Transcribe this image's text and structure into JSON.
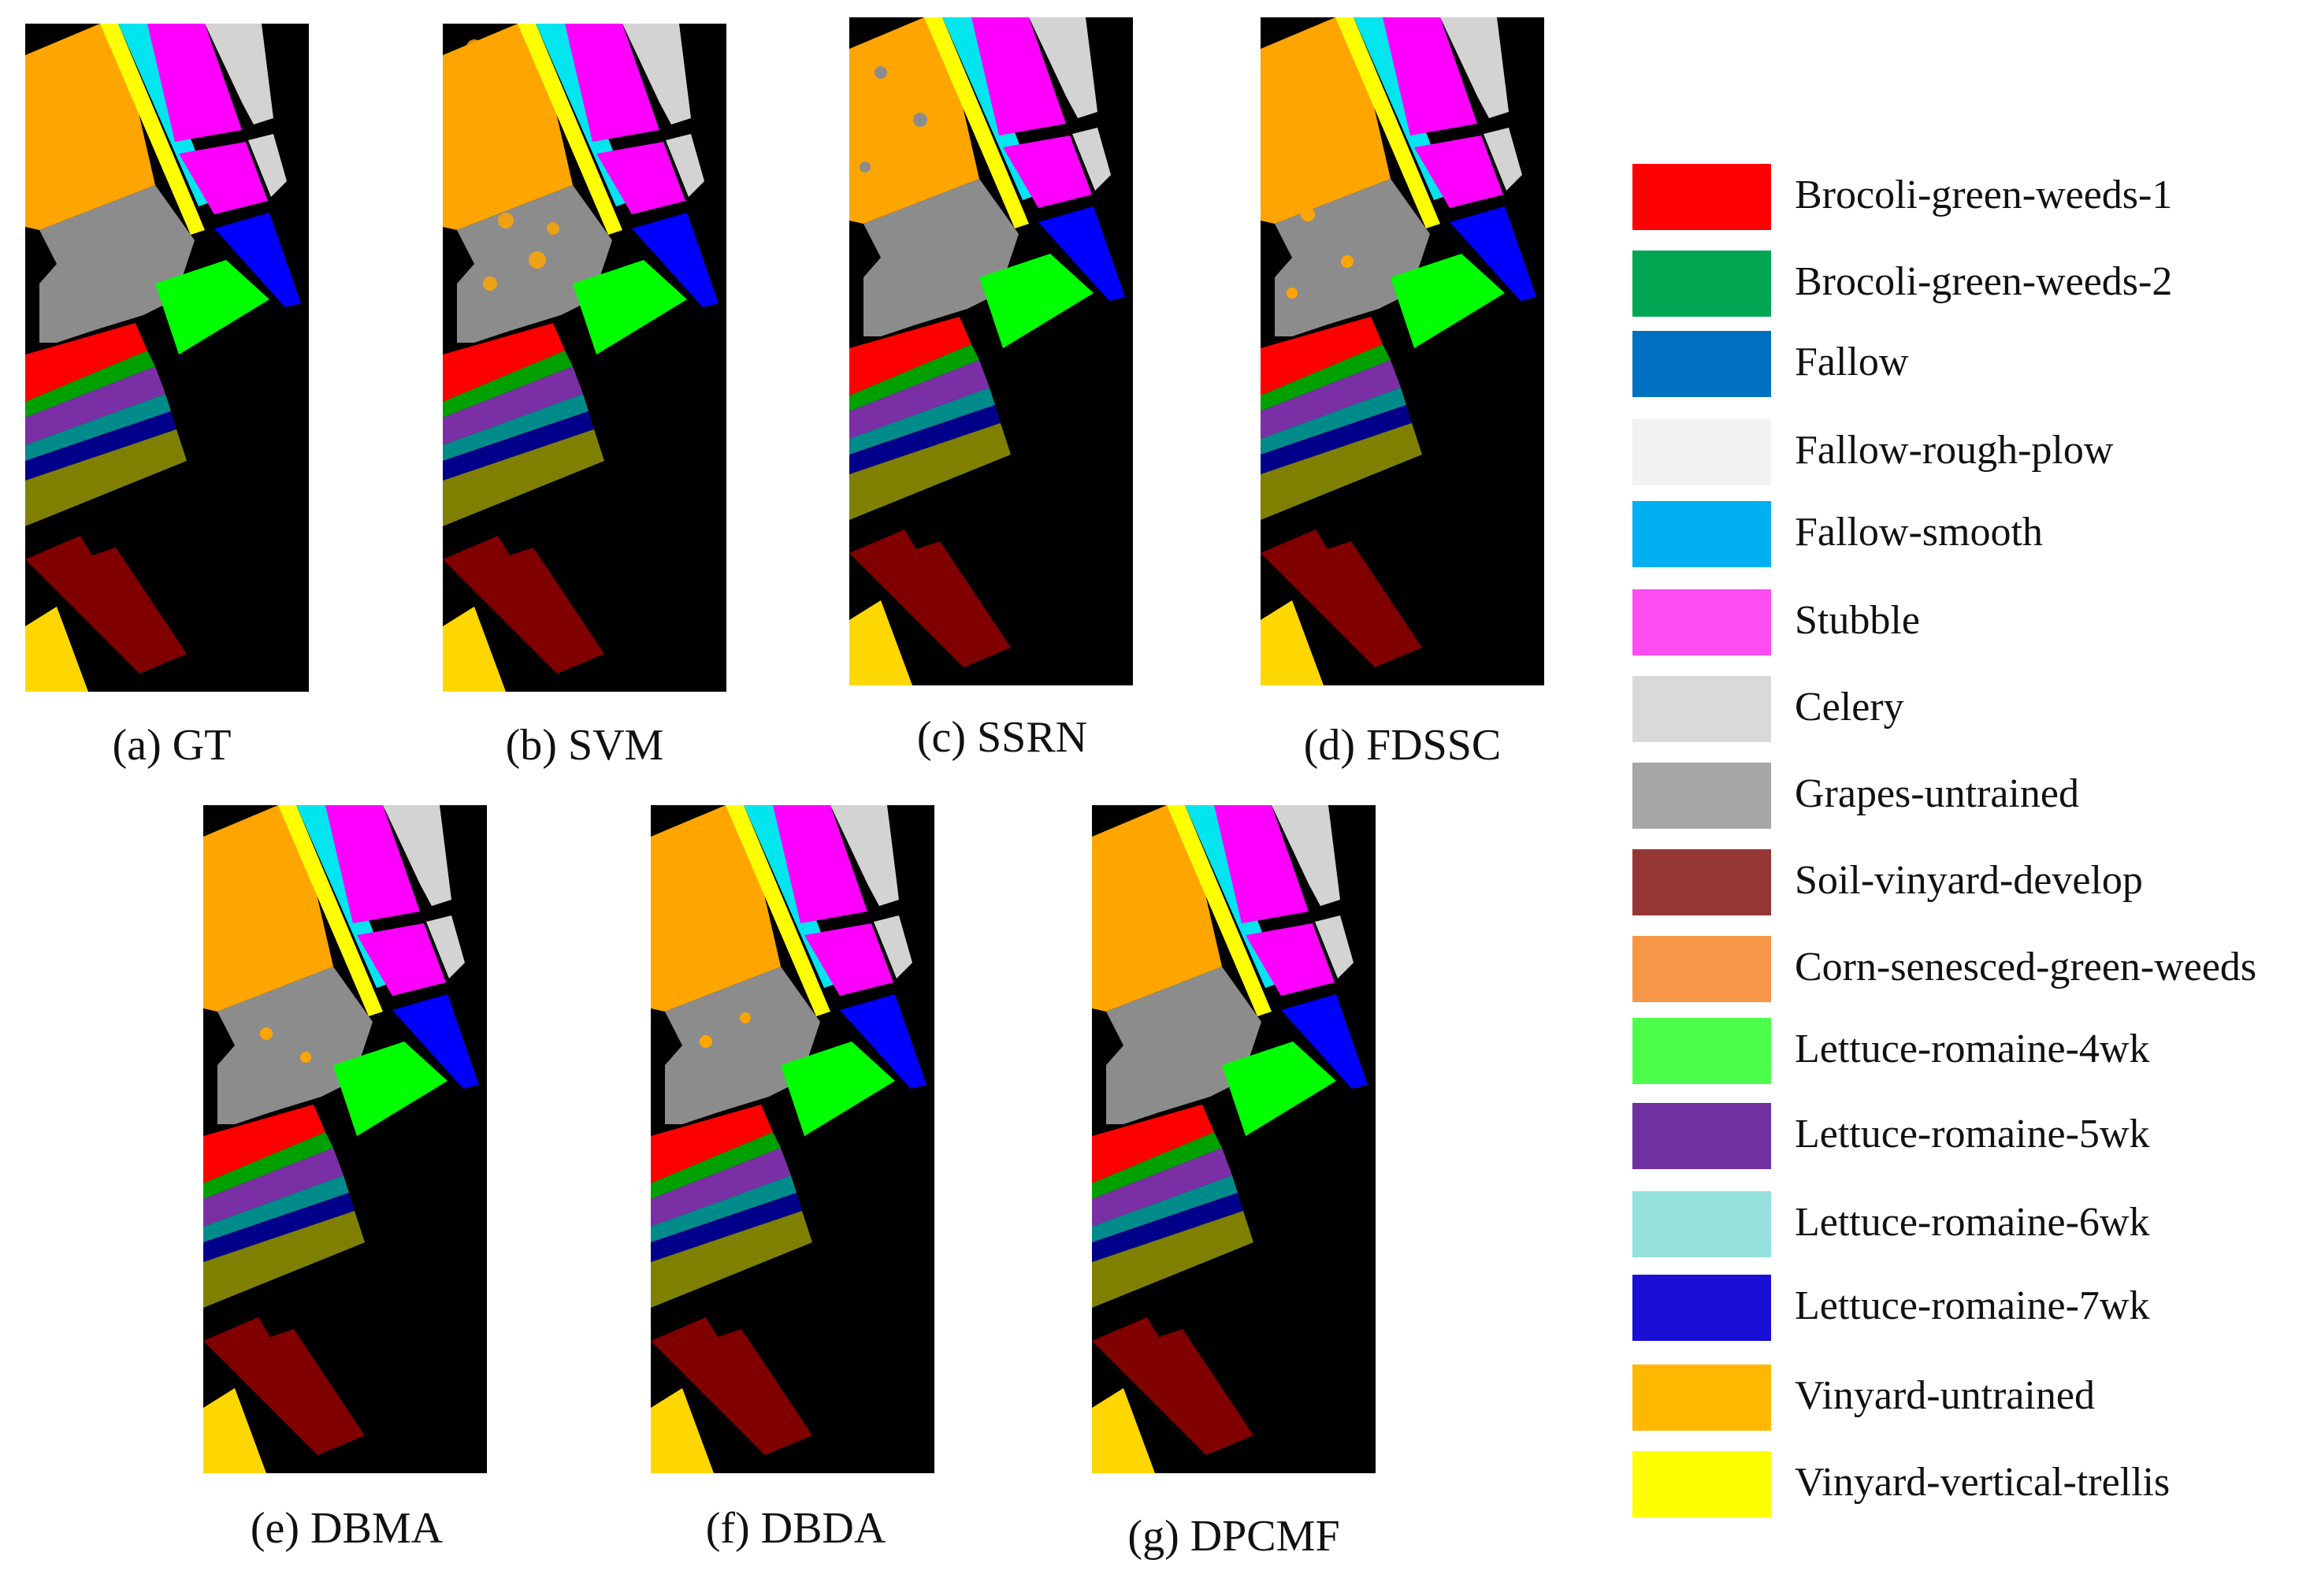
{
  "captions": {
    "a": "(a) GT",
    "b": "(b) SVM",
    "c": "(c) SSRN",
    "d": "(d) FDSSC",
    "e": "(e) DBMA",
    "f": "(f) DBDA",
    "g": "(g) DPCMF"
  },
  "legend": [
    {
      "label": "Brocoli-green-weeds-1",
      "color": "#ff0000"
    },
    {
      "label": "Brocoli-green-weeds-2",
      "color": "#00a651"
    },
    {
      "label": "Fallow",
      "color": "#0070c0"
    },
    {
      "label": "Fallow-rough-plow",
      "color": "#f2f2f2"
    },
    {
      "label": "Fallow-smooth",
      "color": "#00b0f0"
    },
    {
      "label": "Stubble",
      "color": "#ff4df2"
    },
    {
      "label": "Celery",
      "color": "#d9d9d9"
    },
    {
      "label": "Grapes-untrained",
      "color": "#a6a6a6"
    },
    {
      "label": "Soil-vinyard-develop",
      "color": "#953735"
    },
    {
      "label": "Corn-senesced-green-weeds",
      "color": "#f79646"
    },
    {
      "label": "Lettuce-romaine-4wk",
      "color": "#4dff4d"
    },
    {
      "label": "Lettuce-romaine-5wk",
      "color": "#7030a0"
    },
    {
      "label": "Lettuce-romaine-6wk",
      "color": "#93e0dc"
    },
    {
      "label": "Lettuce-romaine-7wk",
      "color": "#1a0fd6"
    },
    {
      "label": "Vinyard-untrained",
      "color": "#ffb700"
    },
    {
      "label": "Vinyard-vertical-trellis",
      "color": "#ffff00"
    }
  ]
}
